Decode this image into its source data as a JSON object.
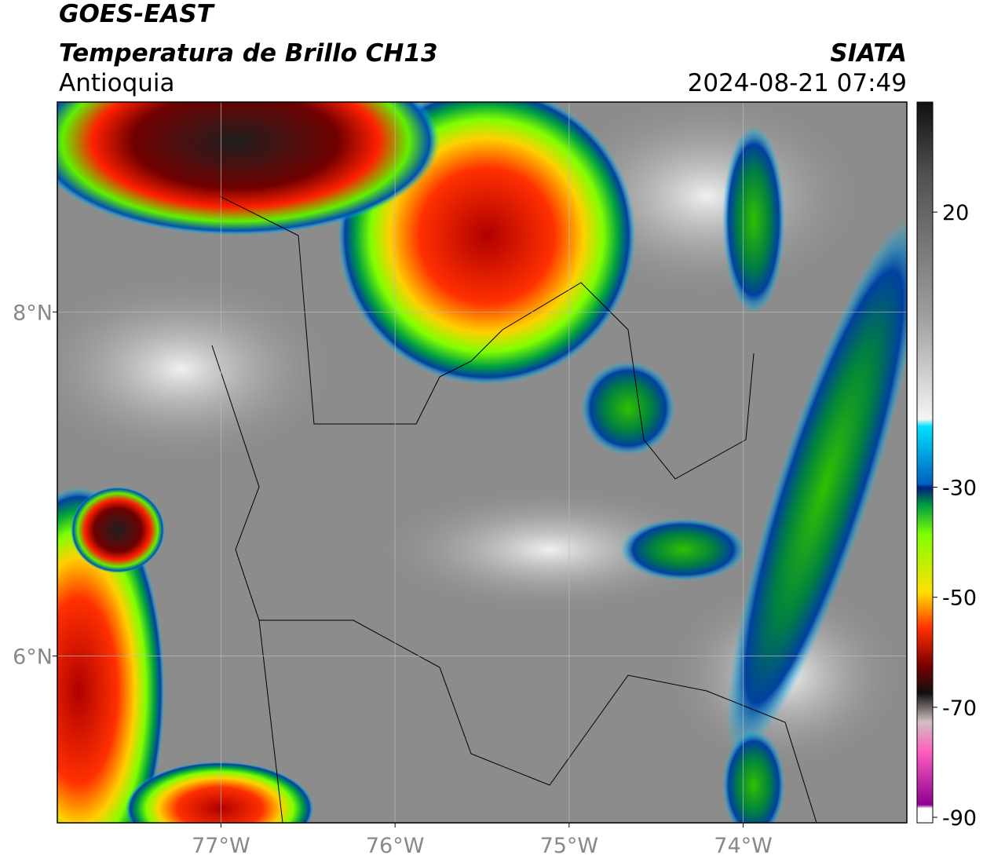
{
  "header": {
    "title": "GOES-EAST",
    "subtitle": "Temperatura de Brillo CH13",
    "region": "Antioquia",
    "source": "SIATA",
    "datetime": "2024-08-21 07:49"
  },
  "map": {
    "xlim": [
      -77.94,
      -73.06
    ],
    "ylim": [
      5.03,
      9.22
    ],
    "grid": true,
    "xticks": [
      {
        "value": -77,
        "label": "77°W"
      },
      {
        "value": -76,
        "label": "76°W"
      },
      {
        "value": -75,
        "label": "75°W"
      },
      {
        "value": -74,
        "label": "74°W"
      }
    ],
    "yticks": [
      {
        "value": 8,
        "label": "8°N"
      },
      {
        "value": 6,
        "label": "6°N"
      }
    ]
  },
  "colorbar": {
    "range": [
      40,
      -91
    ],
    "ticks": [
      20,
      -30,
      -50,
      -70,
      -90
    ]
  }
}
